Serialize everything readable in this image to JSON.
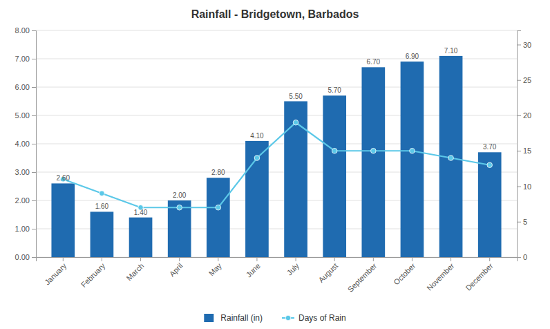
{
  "chart_data": {
    "type": "bar",
    "title": "Rainfall - Bridgetown, Barbados",
    "categories": [
      "January",
      "February",
      "March",
      "April",
      "May",
      "June",
      "July",
      "August",
      "September",
      "October",
      "November",
      "December"
    ],
    "series": [
      {
        "name": "Rainfall (in)",
        "type": "bar",
        "color": "#1F6BB0",
        "values": [
          2.6,
          1.6,
          1.4,
          2.0,
          2.8,
          4.1,
          5.5,
          5.7,
          6.7,
          6.9,
          7.1,
          3.7
        ],
        "value_labels": [
          "2.60",
          "1.60",
          "1.40",
          "2.00",
          "2.80",
          "4.10",
          "5.50",
          "5.70",
          "6.70",
          "6.90",
          "7.10",
          "3.70"
        ]
      },
      {
        "name": "Days of Rain",
        "type": "line",
        "color": "#5BC8E8",
        "marker": "circle",
        "axis": "y2",
        "values": [
          11,
          9,
          7,
          7,
          7,
          14,
          19,
          15,
          15,
          15,
          14,
          13
        ]
      }
    ],
    "ylim": [
      0,
      8.0
    ],
    "yticks": [
      {
        "value": 0,
        "label": "0.00"
      },
      {
        "value": 1,
        "label": "1.00"
      },
      {
        "value": 2,
        "label": "2.00"
      },
      {
        "value": 3,
        "label": "3.00"
      },
      {
        "value": 4,
        "label": "4.00"
      },
      {
        "value": 5,
        "label": "5.00"
      },
      {
        "value": 6,
        "label": "6.00"
      },
      {
        "value": 7,
        "label": "7.00"
      },
      {
        "value": 8,
        "label": "8.00"
      }
    ],
    "y2lim": [
      0,
      32
    ],
    "y2ticks": [
      0,
      5,
      10,
      15,
      20,
      25,
      30
    ],
    "grid": true,
    "legend": "bottom",
    "data_labels": true
  }
}
